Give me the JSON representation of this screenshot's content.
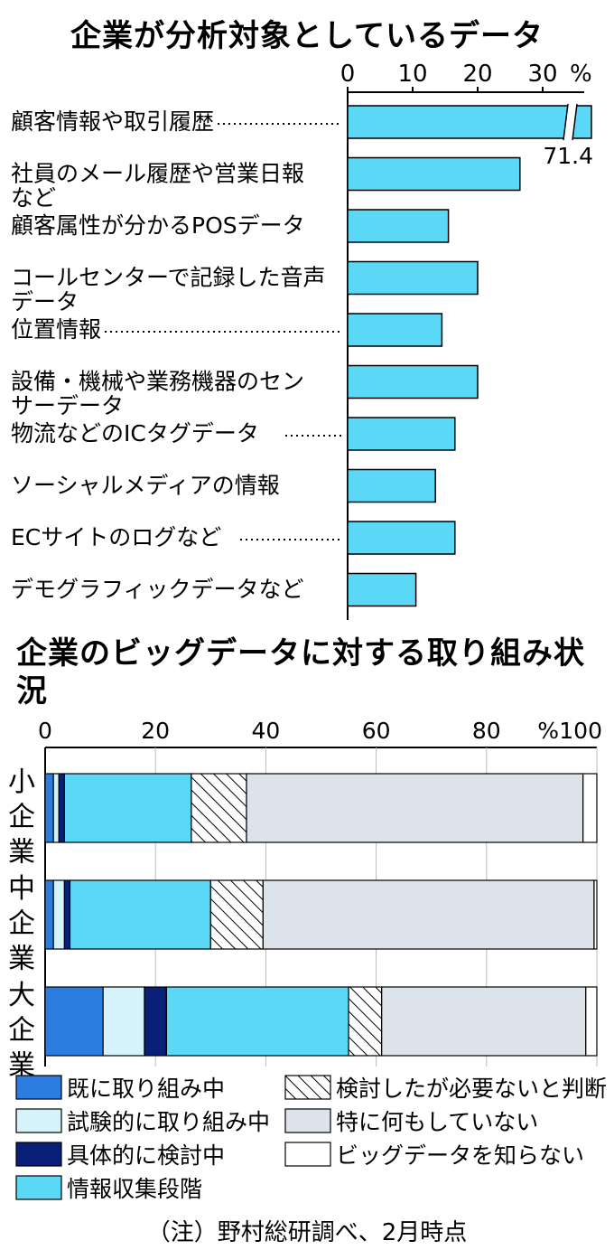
{
  "chart_data": [
    {
      "type": "bar",
      "orientation": "horizontal",
      "title": "企業が分析対象としているデータ",
      "unit": "%",
      "xlim": [
        0,
        35
      ],
      "ticks": [
        "0",
        "10",
        "20",
        "30"
      ],
      "categories": [
        [
          "顧客情報や取引履歴",
          ""
        ],
        [
          "社員のメール履歴や営業日報",
          "など"
        ],
        [
          "顧客属性が分かるPOSデータ",
          ""
        ],
        [
          "コールセンターで記録した音声",
          "データ"
        ],
        [
          "位置情報",
          ""
        ],
        [
          "設備・機械や業務機器のセン",
          "サーデータ"
        ],
        [
          "物流などのICタグデータ",
          ""
        ],
        [
          "ソーシャルメディアの情報",
          ""
        ],
        [
          "ECサイトのログなど",
          ""
        ],
        [
          "デモグラフィックデータなど",
          ""
        ]
      ],
      "leaders": [
        true,
        false,
        false,
        false,
        true,
        false,
        true,
        false,
        true,
        false
      ],
      "values": [
        71.4,
        26.5,
        15.5,
        20,
        14.5,
        20,
        16.5,
        13.5,
        16.5,
        10.5
      ],
      "value_labels": [
        "71.4",
        "",
        "",
        "",
        "",
        "",
        "",
        "",
        "",
        ""
      ],
      "axis_break_on_first_bar": true,
      "bar_color": "#5bd8f5",
      "grid": false
    },
    {
      "type": "bar",
      "orientation": "horizontal",
      "stacked": true,
      "title": "企業のビッグデータに対する取り組み状況",
      "unit": "%",
      "xlim": [
        0,
        100
      ],
      "ticks": [
        "0",
        "20",
        "40",
        "60",
        "80",
        "100"
      ],
      "categories": [
        "小企業",
        "中企業",
        "大企業"
      ],
      "series": [
        {
          "name": "既に取り組み中",
          "values": [
            1.5,
            1.5,
            10.5
          ],
          "color": "#2b7de0",
          "pattern": "solid"
        },
        {
          "name": "試験的に取り組み中",
          "values": [
            1,
            2,
            7.5
          ],
          "color": "#d6f3fb",
          "pattern": "solid"
        },
        {
          "name": "具体的に検討中",
          "values": [
            1,
            1,
            4
          ],
          "color": "#0a1f78",
          "pattern": "solid"
        },
        {
          "name": "情報収集段階",
          "values": [
            23,
            25.5,
            33
          ],
          "color": "#5bd8f5",
          "pattern": "solid"
        },
        {
          "name": "検討したが必要ないと判断",
          "values": [
            10,
            9.5,
            6
          ],
          "color": "#ffffff",
          "pattern": "hatch"
        },
        {
          "name": "特に何もしていない",
          "values": [
            61,
            60,
            37
          ],
          "color": "#dde3ea",
          "pattern": "solid"
        },
        {
          "name": "ビッグデータを知らない",
          "values": [
            2.5,
            0.5,
            2
          ],
          "color": "#ffffff",
          "pattern": "solid"
        }
      ],
      "legend_position": "bottom",
      "grid": true
    }
  ],
  "source": "（注）野村総研調べ、2月時点"
}
